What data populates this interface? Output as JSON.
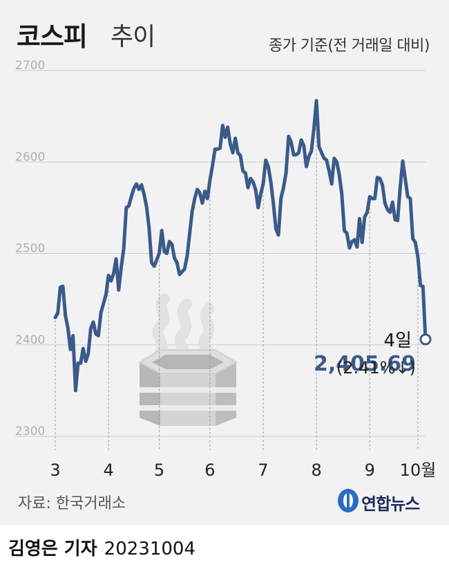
{
  "header": {
    "title_bold": "코스피",
    "title_light": "추이",
    "basis": "종가 기준(전 거래일 대비)"
  },
  "footer": {
    "source": "자료: 한국거래소",
    "logo_text": "연합뉴스",
    "reporter": "김영은 기자",
    "date": "20231004"
  },
  "annotation": {
    "day": "4일",
    "value": "2,405.69",
    "change": "(2.41%↓)"
  },
  "colors": {
    "line": "#3a5a8a",
    "value": "#3a5a8a",
    "grid": "#cccccc",
    "background": "#f2f2f2"
  },
  "icon": "pot-illustration",
  "chart_data": {
    "type": "line",
    "ylim": [
      2300,
      2700
    ],
    "yticks": [
      "2700",
      "2600",
      "2500",
      "2400",
      "2300"
    ],
    "ytick_values": [
      2700,
      2600,
      2500,
      2400,
      2300
    ],
    "xticks": [
      "3",
      "4",
      "5",
      "6",
      "7",
      "8",
      "9",
      "10월"
    ],
    "xtick_positions": [
      0,
      21,
      41,
      61,
      82,
      103,
      124,
      143
    ],
    "grid": true,
    "series": [
      {
        "values": [
          2430,
          2435,
          2463,
          2464,
          2432,
          2418,
          2395,
          2410,
          2350,
          2380,
          2380,
          2396,
          2382,
          2390,
          2418,
          2425,
          2412,
          2410,
          2435,
          2445,
          2455,
          2476,
          2470,
          2478,
          2494,
          2460,
          2485,
          2505,
          2550,
          2552,
          2562,
          2571,
          2576,
          2570,
          2575,
          2565,
          2551,
          2528,
          2490,
          2486,
          2493,
          2500,
          2525,
          2502,
          2500,
          2513,
          2510,
          2495,
          2490,
          2477,
          2480,
          2483,
          2497,
          2522,
          2546,
          2560,
          2570,
          2566,
          2555,
          2568,
          2560,
          2580,
          2596,
          2614,
          2614,
          2615,
          2640,
          2627,
          2638,
          2620,
          2610,
          2626,
          2610,
          2607,
          2590,
          2588,
          2572,
          2582,
          2578,
          2570,
          2550,
          2565,
          2576,
          2602,
          2595,
          2578,
          2555,
          2527,
          2520,
          2560,
          2572,
          2588,
          2628,
          2622,
          2608,
          2608,
          2610,
          2624,
          2618,
          2595,
          2606,
          2612,
          2637,
          2667,
          2617,
          2610,
          2604,
          2602,
          2590,
          2576,
          2604,
          2600,
          2586,
          2565,
          2525,
          2522,
          2506,
          2513,
          2515,
          2507,
          2538,
          2512,
          2540,
          2545,
          2562,
          2560,
          2560,
          2583,
          2582,
          2575,
          2555,
          2548,
          2545,
          2556,
          2537,
          2536,
          2572,
          2601,
          2582,
          2562,
          2560,
          2516,
          2512,
          2496,
          2465,
          2464,
          2406
        ]
      }
    ]
  }
}
